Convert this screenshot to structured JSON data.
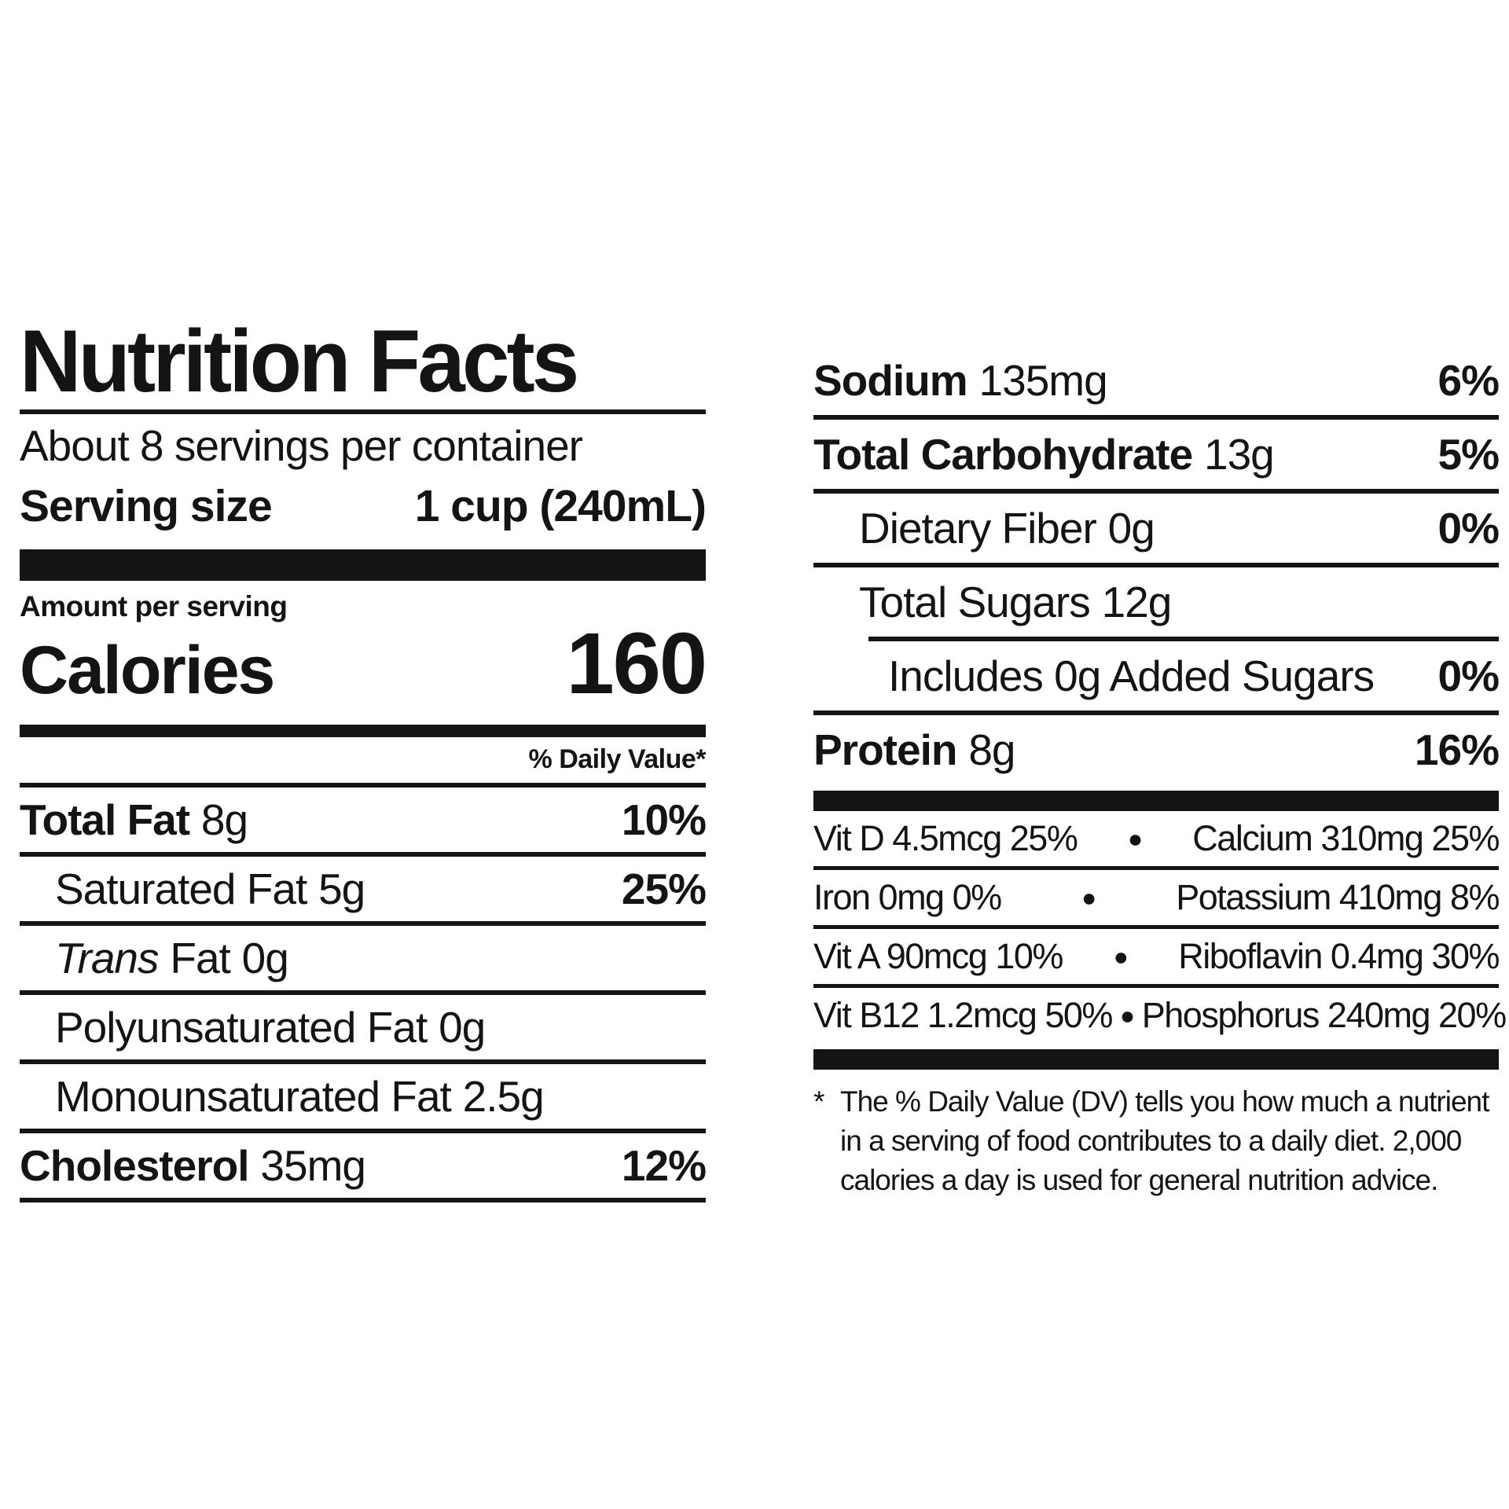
{
  "colors": {
    "text": "#141414",
    "background": "#ffffff"
  },
  "label": {
    "title": "Nutrition Facts",
    "servings_per_container": "About 8 servings per container",
    "serving_size": {
      "label": "Serving size",
      "value": "1 cup (240mL)"
    },
    "amount_per_serving": "Amount per serving",
    "calories": {
      "label": "Calories",
      "value": "160"
    },
    "daily_value_header": "% Daily Value*",
    "nutrient_rows_left": [
      {
        "name": "Total Fat",
        "amount": "8g",
        "dv": "10%"
      },
      {
        "name": "Saturated Fat",
        "amount": "5g",
        "dv": "25%"
      },
      {
        "name_italic": "Trans",
        "name": "Fat",
        "amount": "0g",
        "dv": ""
      },
      {
        "name": "Polyunsaturated Fat",
        "amount": "0g",
        "dv": ""
      },
      {
        "name": "Monounsaturated Fat",
        "amount": "2.5g",
        "dv": ""
      },
      {
        "name": "Cholesterol",
        "amount": "35mg",
        "dv": "12%"
      }
    ],
    "nutrient_rows_right": [
      {
        "name": "Sodium",
        "amount": "135mg",
        "dv": "6%"
      },
      {
        "name": "Total Carbohydrate",
        "amount": "13g",
        "dv": "5%"
      },
      {
        "name": "Dietary Fiber",
        "amount": "0g",
        "dv": "0%"
      },
      {
        "name": "Total Sugars",
        "amount": "12g",
        "dv": ""
      },
      {
        "name": "Includes 0g Added Sugars",
        "amount": "",
        "dv": "0%"
      },
      {
        "name": "Protein",
        "amount": "8g",
        "dv": "16%"
      }
    ],
    "bullet": "●",
    "micronutrients": [
      {
        "left": "Vit D 4.5mcg 25%",
        "right": "Calcium 310mg 25%"
      },
      {
        "left": "Iron 0mg 0%",
        "right": "Potassium 410mg 8%"
      },
      {
        "left": "Vit A 90mcg 10%",
        "right": "Riboflavin 0.4mg 30%"
      },
      {
        "left": "Vit B12 1.2mcg 50%",
        "right": "Phosphorus 240mg 20%"
      }
    ],
    "footnote": {
      "symbol": "*",
      "line1": "The % Daily Value (DV) tells you how much a nutrient",
      "line2": "in a serving of food contributes to a daily diet. 2,000",
      "line3": "calories a day is used for general nutrition advice."
    }
  }
}
